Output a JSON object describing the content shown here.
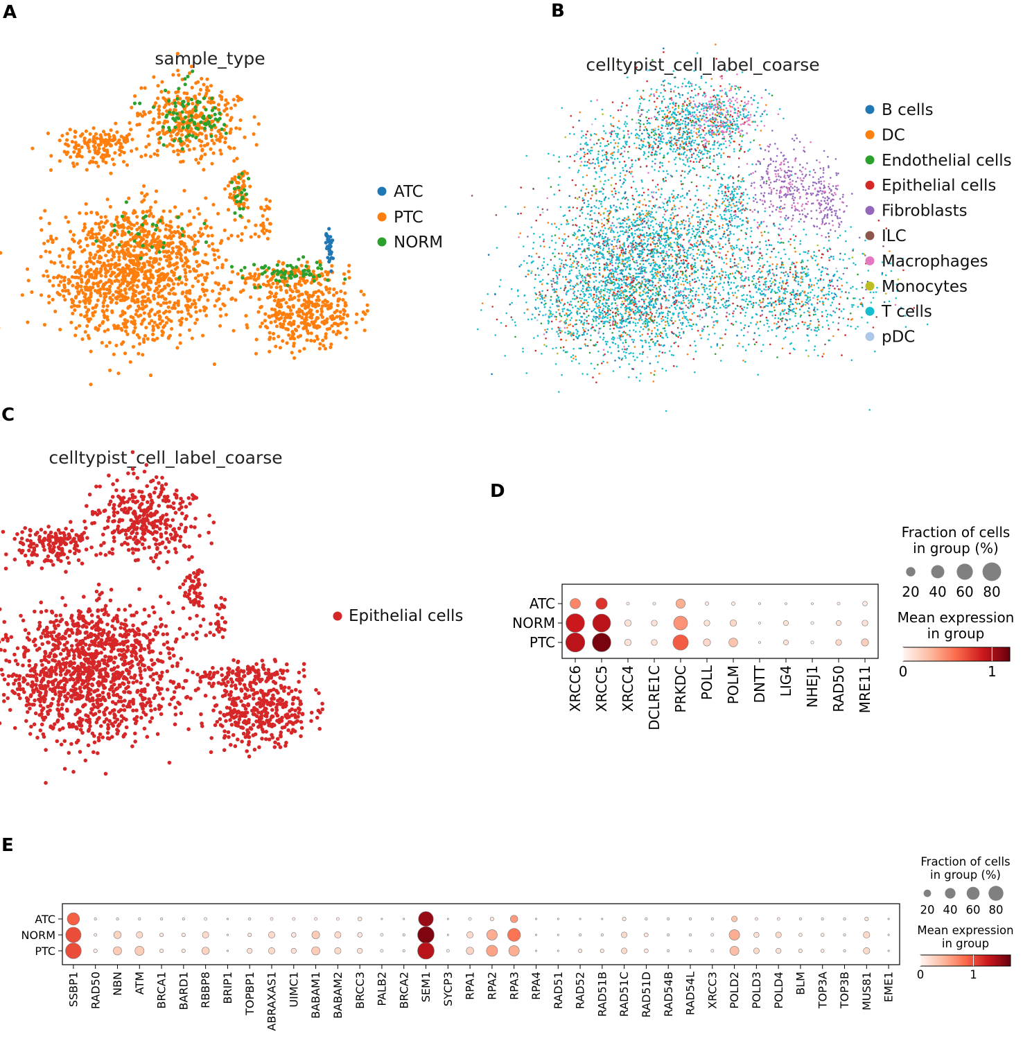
{
  "colors": {
    "ATC": "#1f77b4",
    "PTC": "#ff7f0e",
    "NORM": "#2ca02c",
    "epithelial": "#d62728",
    "B cells": "#1f77b4",
    "DC": "#ff7f0e",
    "Endothelial cells": "#2ca02c",
    "Epithelial cells": "#d62728",
    "Fibroblasts": "#9467bd",
    "ILC": "#8c564b",
    "Macrophages": "#e377c2",
    "Monocytes": "#bcbd22",
    "T cells": "#17becf",
    "pDC": "#aec7e8"
  },
  "panels": {
    "A": {
      "letter": "A",
      "title": "sample_type",
      "legend": [
        "ATC",
        "PTC",
        "NORM"
      ]
    },
    "B": {
      "letter": "B",
      "title": "celltypist_cell_label_coarse",
      "legend": [
        "B cells",
        "DC",
        "Endothelial cells",
        "Epithelial cells",
        "Fibroblasts",
        "ILC",
        "Macrophages",
        "Monocytes",
        "T cells",
        "pDC"
      ]
    },
    "C": {
      "letter": "C",
      "title": "celltypist_cell_label_coarse",
      "legend": [
        "Epithelial cells"
      ]
    },
    "D": {
      "letter": "D"
    },
    "E": {
      "letter": "E"
    }
  },
  "chart_data": [
    {
      "type": "scatter",
      "panel": "A",
      "title": "sample_type",
      "embedding": "UMAP",
      "groups": [
        "ATC",
        "PTC",
        "NORM"
      ]
    },
    {
      "type": "scatter",
      "panel": "B",
      "title": "celltypist_cell_label_coarse",
      "embedding": "UMAP",
      "groups": [
        "B cells",
        "DC",
        "Endothelial cells",
        "Epithelial cells",
        "Fibroblasts",
        "ILC",
        "Macrophages",
        "Monocytes",
        "T cells",
        "pDC"
      ]
    },
    {
      "type": "scatter",
      "panel": "C",
      "title": "celltypist_cell_label_coarse",
      "embedding": "UMAP",
      "groups": [
        "Epithelial cells"
      ]
    },
    {
      "type": "dotplot",
      "panel": "D",
      "rows": [
        "ATC",
        "NORM",
        "PTC"
      ],
      "genes": [
        "XRCC6",
        "XRCC5",
        "XRCC4",
        "DCLRE1C",
        "PRKDC",
        "POLL",
        "POLM",
        "DNTT",
        "LIG4",
        "NHEJ1",
        "RAD50",
        "MRE11"
      ],
      "fraction": [
        [
          25,
          30,
          2,
          2,
          20,
          3,
          3,
          1,
          1,
          1,
          2,
          5
        ],
        [
          80,
          75,
          10,
          8,
          45,
          8,
          10,
          1,
          6,
          2,
          6,
          8
        ],
        [
          85,
          80,
          10,
          8,
          55,
          12,
          18,
          1,
          6,
          2,
          8,
          12
        ]
      ],
      "expression": [
        [
          0.5,
          0.8,
          0.05,
          0.05,
          0.35,
          0.05,
          0.05,
          0.02,
          0.02,
          0.02,
          0.05,
          0.05
        ],
        [
          0.9,
          0.95,
          0.1,
          0.1,
          0.45,
          0.1,
          0.15,
          0.02,
          0.1,
          0.02,
          0.1,
          0.1
        ],
        [
          0.95,
          1.15,
          0.1,
          0.1,
          0.65,
          0.15,
          0.25,
          0.02,
          0.1,
          0.02,
          0.15,
          0.2
        ]
      ],
      "size_legend": {
        "title_line1": "Fraction of cells",
        "title_line2": "in group (%)",
        "values": [
          20,
          40,
          60,
          80
        ],
        "labels": [
          "20",
          "40",
          "60",
          "80"
        ]
      },
      "color_legend": {
        "title_line1": "Mean expression",
        "title_line2": "in group",
        "range": [
          0,
          1.2
        ],
        "ticks": [
          "0",
          "1"
        ]
      }
    },
    {
      "type": "dotplot",
      "panel": "E",
      "rows": [
        "ATC",
        "NORM",
        "PTC"
      ],
      "genes": [
        "SSBP1",
        "RAD50",
        "NBN",
        "ATM",
        "BRCA1",
        "BARD1",
        "RBBP8",
        "BRIP1",
        "TOPBP1",
        "ABRAXAS1",
        "UIMC1",
        "BABAM1",
        "BABAM2",
        "BRCC3",
        "PALB2",
        "BRCA2",
        "SEM1",
        "SYCP3",
        "RPA1",
        "RPA2",
        "RPA3",
        "RPA4",
        "RAD51",
        "RAD52",
        "RAD51B",
        "RAD51C",
        "RAD51D",
        "RAD54B",
        "RAD54L",
        "XRCC3",
        "POLD2",
        "POLD3",
        "POLD4",
        "BLM",
        "TOP3A",
        "TOP3B",
        "MUS81",
        "EME1"
      ],
      "fraction": [
        [
          55,
          2,
          2,
          2,
          2,
          2,
          3,
          1,
          2,
          3,
          3,
          3,
          3,
          6,
          1,
          1,
          80,
          1,
          3,
          5,
          20,
          1,
          1,
          1,
          1,
          5,
          2,
          2,
          2,
          2,
          12,
          3,
          3,
          2,
          2,
          2,
          5,
          1
        ],
        [
          85,
          3,
          20,
          15,
          5,
          5,
          15,
          1,
          5,
          15,
          8,
          22,
          15,
          8,
          3,
          2,
          100,
          1,
          15,
          40,
          60,
          1,
          1,
          2,
          2,
          12,
          6,
          2,
          2,
          3,
          40,
          10,
          12,
          4,
          4,
          2,
          15,
          1
        ],
        [
          90,
          5,
          25,
          30,
          5,
          5,
          20,
          1,
          10,
          15,
          10,
          25,
          15,
          10,
          3,
          2,
          100,
          3,
          20,
          45,
          40,
          1,
          1,
          5,
          5,
          12,
          6,
          2,
          2,
          3,
          30,
          12,
          10,
          5,
          4,
          2,
          15,
          1
        ]
      ],
      "expression": [
        [
          0.9,
          0.05,
          0.05,
          0.05,
          0.05,
          0.05,
          0.05,
          0.02,
          0.05,
          0.05,
          0.05,
          0.05,
          0.05,
          0.1,
          0.02,
          0.02,
          1.5,
          0.02,
          0.05,
          0.1,
          0.6,
          0.02,
          0.02,
          0.02,
          0.02,
          0.1,
          0.05,
          0.05,
          0.05,
          0.05,
          0.35,
          0.05,
          0.05,
          0.05,
          0.05,
          0.05,
          0.1,
          0.02
        ],
        [
          1.0,
          0.05,
          0.25,
          0.2,
          0.1,
          0.1,
          0.2,
          0.02,
          0.1,
          0.2,
          0.1,
          0.3,
          0.2,
          0.1,
          0.05,
          0.05,
          1.6,
          0.02,
          0.2,
          0.5,
          0.8,
          0.02,
          0.02,
          0.05,
          0.05,
          0.2,
          0.1,
          0.05,
          0.05,
          0.05,
          0.5,
          0.15,
          0.2,
          0.1,
          0.1,
          0.05,
          0.2,
          0.02
        ],
        [
          1.0,
          0.05,
          0.3,
          0.3,
          0.1,
          0.1,
          0.25,
          0.02,
          0.15,
          0.2,
          0.15,
          0.3,
          0.2,
          0.15,
          0.05,
          0.05,
          1.35,
          0.05,
          0.25,
          0.55,
          0.5,
          0.02,
          0.02,
          0.1,
          0.1,
          0.2,
          0.1,
          0.05,
          0.05,
          0.05,
          0.4,
          0.2,
          0.15,
          0.1,
          0.1,
          0.05,
          0.2,
          0.02
        ]
      ],
      "size_legend": {
        "title_line1": "Fraction of cells",
        "title_line2": "in group (%)",
        "values": [
          20,
          40,
          60,
          80
        ],
        "labels": [
          "20",
          "40",
          "60",
          "80"
        ]
      },
      "color_legend": {
        "title_line1": "Mean expression",
        "title_line2": "in group",
        "range": [
          0,
          1.7
        ],
        "ticks": [
          "0",
          "1"
        ]
      }
    }
  ]
}
